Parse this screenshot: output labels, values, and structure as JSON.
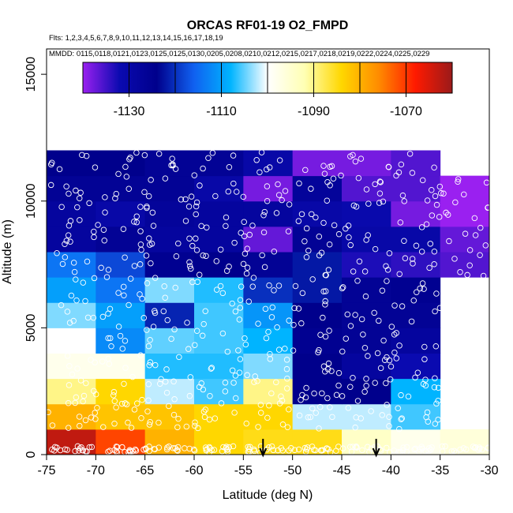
{
  "chart_data": {
    "type": "heatmap",
    "title": "ORCAS RF01-19 O2_FMPD",
    "flights_line": "Flts: 1,2,3,4,5,6,7,8,9,10,11,12,13,14,15,16,17,18,19",
    "dates_line": "MMDD: 0115,0118,0121,0123,0125,0125,0130,0205,0208,0210,0212,0215,0217,0218,0219,0222,0224,0225,0229",
    "xlabel": "Latitude (deg N)",
    "ylabel": "Altitude (m)",
    "xlim": [
      -75,
      -30
    ],
    "ylim": [
      0,
      16000
    ],
    "x_ticks": [
      -75,
      -70,
      -65,
      -60,
      -55,
      -50,
      -45,
      -40,
      -35,
      -30
    ],
    "y_ticks": [
      0,
      5000,
      10000,
      15000
    ],
    "colorbar": {
      "range": [
        -1140,
        -1060
      ],
      "ticks": [
        -1130,
        -1110,
        -1090,
        -1070
      ],
      "stops": [
        "#9a20f0",
        "#0a0ab0",
        "#00008c",
        "#1060f0",
        "#00b4ff",
        "#ffffff",
        "#ffffb4",
        "#ffd700",
        "#ff8c00",
        "#ff1a00",
        "#9a1a1a"
      ]
    },
    "x_bin_edges": [
      -75,
      -70,
      -65,
      -60,
      -55,
      -50,
      -45,
      -40,
      -35,
      -30
    ],
    "alt_bin_edges": [
      0,
      1000,
      2000,
      3000,
      4000,
      5000,
      6000,
      7000,
      8000,
      9000,
      10000,
      11000,
      12000
    ],
    "grid_values": [
      [
        -1063,
        -1071,
        -1080,
        -1084,
        -1085,
        -1085,
        -1094,
        -1098,
        -1096
      ],
      [
        -1080,
        -1082,
        -1082,
        -1084,
        -1084,
        -1102,
        -1102,
        -1106,
        null
      ],
      [
        -1090,
        -1084,
        -1102,
        -1106,
        -1090,
        -1124,
        -1124,
        -1108,
        null
      ],
      [
        -1098,
        -1098,
        -1107,
        -1107,
        -1104,
        -1124,
        -1128,
        -1132,
        null
      ],
      [
        -1100,
        -1112,
        -1105,
        -1106,
        -1108,
        -1125,
        -1126,
        -1128,
        null
      ],
      [
        -1104,
        -1110,
        -1121,
        -1106,
        -1111,
        -1124,
        -1126,
        -1126,
        null
      ],
      [
        -1110,
        -1114,
        -1104,
        -1107,
        -1120,
        -1122,
        -1126,
        -1125,
        null
      ],
      [
        -1114,
        -1118,
        -1125,
        -1124,
        -1126,
        -1122,
        -1133,
        -1134,
        -1136
      ],
      [
        -1128,
        -1126,
        -1128,
        -1128,
        -1137,
        -1126,
        -1130,
        -1130,
        -1137
      ],
      [
        -1128,
        -1130,
        -1127,
        -1128,
        -1128,
        -1130,
        -1131,
        -1138,
        -1140
      ],
      [
        -1126,
        -1126,
        -1126,
        -1130,
        -1138,
        -1127,
        -1136,
        -1136,
        -1140
      ],
      [
        -1124,
        -1124,
        -1126,
        -1126,
        -1130,
        -1138,
        -1138,
        -1136,
        null
      ]
    ],
    "flight_markers_lat": [
      -53,
      -41.5
    ]
  }
}
